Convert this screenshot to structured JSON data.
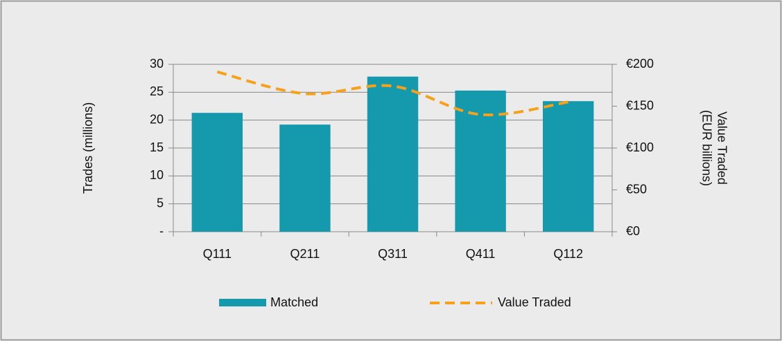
{
  "chart_data": {
    "type": "bar_line",
    "categories": [
      "Q111",
      "Q211",
      "Q311",
      "Q411",
      "Q112"
    ],
    "series": [
      {
        "name": "Matched",
        "type": "bar",
        "color": "#1499ad",
        "values": [
          21.3,
          19.2,
          27.8,
          25.3,
          23.4
        ]
      },
      {
        "name": "Value Traded",
        "type": "line",
        "axis": "y2",
        "color": "#f7a11a",
        "dashed": true,
        "values": [
          191,
          165,
          174,
          140,
          155
        ]
      }
    ],
    "ylabel": "Trades (millions)",
    "y2label": [
      "Value Traded",
      "(EUR billions)"
    ],
    "ylim": [
      0,
      30
    ],
    "yticks": [
      {
        "value": 0,
        "label": "-"
      },
      5,
      10,
      15,
      20,
      25,
      30
    ],
    "y2lim": [
      0,
      200
    ],
    "y2ticks": [
      {
        "value": 0,
        "label": "€0"
      },
      {
        "value": 50,
        "label": "€50"
      },
      {
        "value": 100,
        "label": "€100"
      },
      {
        "value": 150,
        "label": "€150"
      },
      {
        "value": 200,
        "label": "€200"
      }
    ],
    "grid": true,
    "legend": "bottom"
  }
}
